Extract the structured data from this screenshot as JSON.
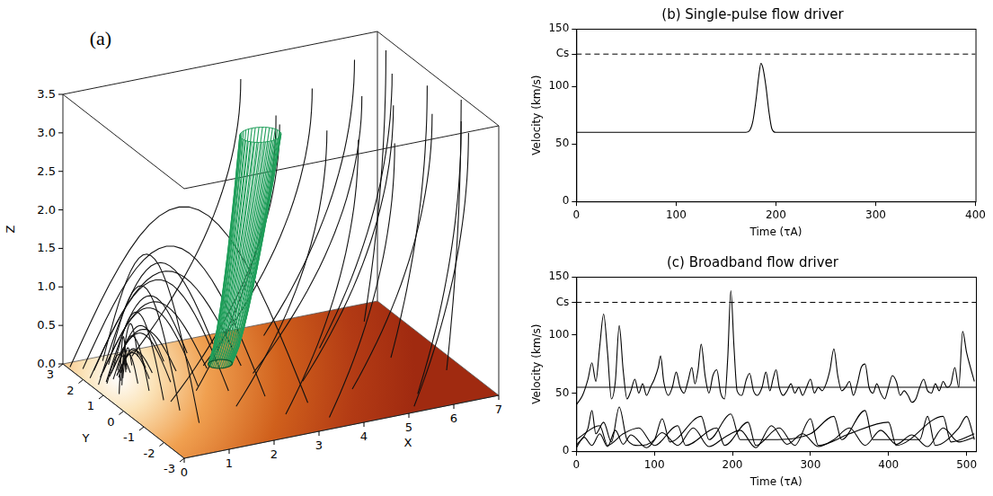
{
  "panel_a": {
    "label": "(a)",
    "x_axis": {
      "title": "X",
      "lim": [
        0,
        7
      ],
      "ticks": [
        0,
        1,
        2,
        3,
        4,
        5,
        6,
        7
      ]
    },
    "y_axis": {
      "title": "Y",
      "lim": [
        -3,
        3
      ],
      "ticks": [
        -3,
        -2,
        -1,
        0,
        1,
        2,
        3
      ]
    },
    "z_axis": {
      "title": "Z",
      "lim": [
        0,
        3.5
      ],
      "ticks": [
        {
          "value": 0,
          "label": "0.0"
        },
        {
          "value": 0.5,
          "label": "0.5"
        },
        {
          "value": 1,
          "label": "1.0"
        },
        {
          "value": 1.5,
          "label": "1.5"
        },
        {
          "value": 2,
          "label": "2.0"
        },
        {
          "value": 2.5,
          "label": "2.5"
        },
        {
          "value": 3,
          "label": "3.0"
        },
        {
          "value": 3.5,
          "label": "3.5"
        }
      ]
    }
  },
  "chart_data": [
    {
      "type": "line",
      "title": "(b) Single-pulse flow driver",
      "x_label": "Time (τA)",
      "y_label": "Velocity (km/s)",
      "xlim": [
        0,
        400
      ],
      "xticks": [
        0,
        100,
        200,
        300,
        400
      ],
      "ylim": [
        0,
        150
      ],
      "yticks": [
        0,
        50,
        100,
        {
          "value": 128,
          "label": "Cs"
        },
        150
      ],
      "grid": false,
      "reference_lines": [
        {
          "value": 128,
          "line_style": "dashed"
        }
      ],
      "series": [
        {
          "color": "#000000",
          "x": [
            0,
            170,
            174,
            177,
            180,
            183,
            185,
            187,
            190,
            193,
            196,
            200,
            400
          ],
          "values": [
            60,
            60,
            62,
            70,
            88,
            110,
            120,
            116,
            100,
            78,
            63,
            60,
            60
          ]
        }
      ]
    },
    {
      "type": "line",
      "title": "(c) Broadband flow driver",
      "x_label": "Time (τA)",
      "y_label": "Velocity (km/s)",
      "xlim": [
        0,
        512
      ],
      "xticks": [
        0,
        100,
        200,
        300,
        400,
        500
      ],
      "ylim": [
        0,
        150
      ],
      "yticks": [
        0,
        50,
        100,
        {
          "value": 128,
          "label": "Cs"
        },
        150
      ],
      "grid": false,
      "reference_lines": [
        {
          "value": 128,
          "line_style": "dashed"
        },
        {
          "value": 55,
          "line_style": "solid"
        }
      ],
      "series": [
        {
          "color": "#000000",
          "x": [
            0,
            8,
            15,
            20,
            25,
            30,
            35,
            40,
            45,
            50,
            55,
            60,
            65,
            70,
            75,
            80,
            85,
            90,
            95,
            100,
            105,
            108,
            112,
            118,
            123,
            128,
            133,
            138,
            143,
            148,
            152,
            156,
            160,
            165,
            170,
            175,
            180,
            185,
            190,
            194,
            198,
            202,
            206,
            212,
            218,
            222,
            227,
            232,
            238,
            243,
            248,
            252,
            256,
            260,
            265,
            270,
            275,
            280,
            285,
            290,
            295,
            300,
            305,
            310,
            315,
            320,
            325,
            330,
            335,
            340,
            345,
            350,
            355,
            360,
            365,
            370,
            375,
            380,
            385,
            390,
            395,
            400,
            405,
            410,
            415,
            420,
            425,
            430,
            435,
            440,
            445,
            450,
            455,
            460,
            465,
            470,
            475,
            480,
            485,
            490,
            495,
            500,
            505,
            510
          ],
          "values": [
            40,
            48,
            62,
            76,
            60,
            90,
            118,
            85,
            45,
            60,
            108,
            70,
            45,
            52,
            62,
            50,
            58,
            48,
            55,
            62,
            72,
            82,
            60,
            48,
            55,
            68,
            55,
            50,
            60,
            72,
            58,
            70,
            92,
            65,
            50,
            65,
            70,
            50,
            45,
            80,
            138,
            90,
            52,
            48,
            62,
            67,
            52,
            48,
            55,
            68,
            52,
            62,
            70,
            55,
            48,
            52,
            58,
            50,
            55,
            48,
            55,
            62,
            50,
            55,
            52,
            58,
            70,
            88,
            65,
            52,
            55,
            60,
            48,
            58,
            72,
            75,
            55,
            50,
            58,
            50,
            45,
            55,
            65,
            60,
            48,
            52,
            48,
            42,
            45,
            55,
            62,
            52,
            50,
            58,
            52,
            60,
            55,
            58,
            72,
            55,
            103,
            85,
            72,
            60
          ]
        },
        {
          "color": "#000000",
          "x": [
            0,
            15,
            20,
            25,
            35,
            45,
            55,
            65,
            80,
            100,
            110,
            120,
            160,
            170,
            198,
            210,
            250,
            300,
            330,
            340,
            370,
            380,
            440,
            450,
            460,
            490,
            500,
            510
          ],
          "values": [
            5,
            20,
            35,
            15,
            25,
            8,
            38,
            10,
            5,
            10,
            28,
            8,
            30,
            10,
            32,
            10,
            10,
            15,
            30,
            10,
            35,
            10,
            10,
            30,
            5,
            20,
            30,
            10
          ]
        },
        {
          "color": "#000000",
          "x": [
            0,
            30,
            40,
            60,
            80,
            100,
            130,
            140,
            180,
            190,
            220,
            230,
            260,
            280,
            300,
            310,
            350,
            400,
            410,
            470,
            480,
            510
          ],
          "values": [
            10,
            22,
            5,
            15,
            20,
            5,
            22,
            5,
            20,
            5,
            25,
            5,
            20,
            5,
            28,
            5,
            15,
            25,
            5,
            30,
            8,
            15
          ]
        },
        {
          "color": "#000000",
          "x": [
            0,
            10,
            20,
            30,
            40,
            50,
            60,
            70,
            90,
            110,
            130,
            150,
            170,
            190,
            210,
            230,
            250,
            270,
            290,
            310,
            330,
            350,
            370,
            390,
            410,
            430,
            450,
            470,
            490,
            510
          ],
          "values": [
            3,
            12,
            5,
            15,
            4,
            18,
            6,
            14,
            3,
            16,
            5,
            20,
            4,
            12,
            18,
            3,
            22,
            6,
            15,
            4,
            10,
            20,
            5,
            18,
            6,
            14,
            4,
            20,
            8,
            12
          ]
        }
      ]
    }
  ]
}
